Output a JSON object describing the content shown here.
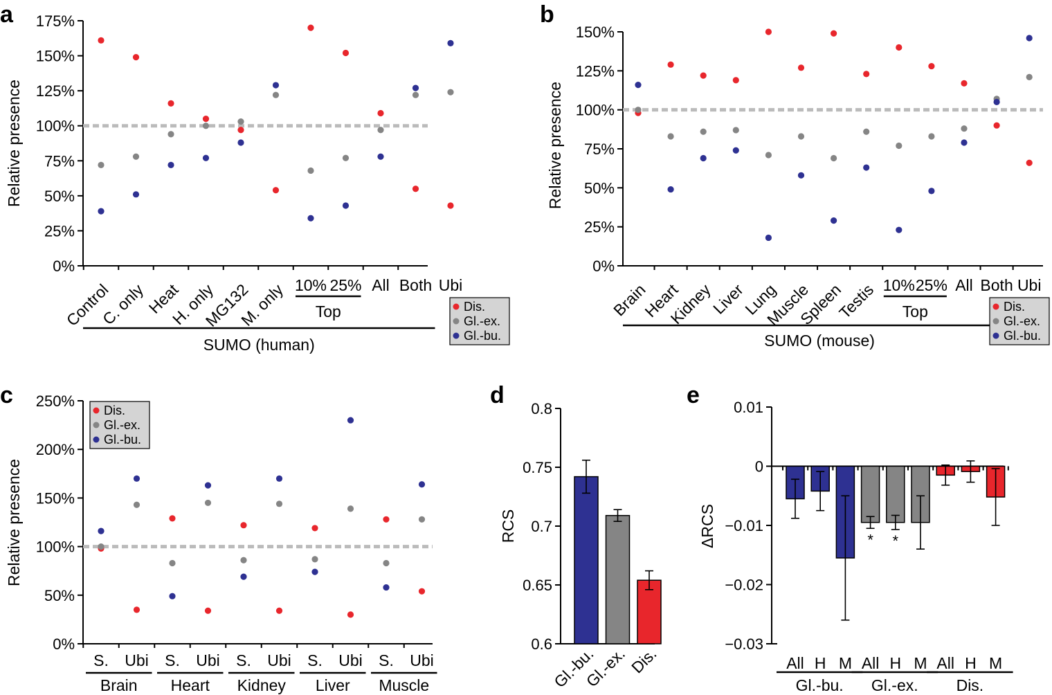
{
  "colors": {
    "dis": "#e8262c",
    "glex": "#858585",
    "glbu": "#2e3192",
    "ref": "#bbbbbb",
    "legend_bg": "#d4d4d4"
  },
  "legend": [
    "Dis.",
    "Gl.-ex.",
    "Gl.-bu."
  ],
  "chart_data": [
    {
      "id": "a",
      "panel_label": "a",
      "type": "scatter",
      "title": "",
      "ylabel": "Relative presence",
      "ylim": [
        0,
        175
      ],
      "yticks": [
        0,
        25,
        50,
        75,
        100,
        125,
        150,
        175
      ],
      "ytick_labels": [
        "0%",
        "25%",
        "50%",
        "75%",
        "100%",
        "125%",
        "150%",
        "175%"
      ],
      "reference_line": 100,
      "categories": [
        "Control",
        "C. only",
        "Heat",
        "H. only",
        "MG132",
        "M. only",
        "10%",
        "25%",
        "All",
        "Both",
        "Ubi"
      ],
      "rotated_count": 6,
      "groups": [
        {
          "label": "Top",
          "from": 6,
          "to": 7
        },
        {
          "label": "SUMO (human)",
          "from": 0,
          "to": 9
        }
      ],
      "series": [
        {
          "name": "Dis.",
          "key": "dis",
          "values": [
            161,
            149,
            116,
            105,
            97,
            54,
            170,
            152,
            109,
            55,
            43
          ]
        },
        {
          "name": "Gl.-ex.",
          "key": "glex",
          "values": [
            72,
            78,
            94,
            100,
            103,
            122,
            68,
            77,
            97,
            122,
            124
          ]
        },
        {
          "name": "Gl.-bu.",
          "key": "glbu",
          "values": [
            39,
            51,
            72,
            77,
            88,
            129,
            34,
            43,
            78,
            127,
            159
          ]
        }
      ],
      "legend_position": "bottom-right"
    },
    {
      "id": "b",
      "panel_label": "b",
      "type": "scatter",
      "title": "",
      "ylabel": "Relative presence",
      "ylim": [
        0,
        150
      ],
      "yticks": [
        0,
        25,
        50,
        75,
        100,
        125,
        150
      ],
      "ytick_labels": [
        "0%",
        "25%",
        "50%",
        "75%",
        "100%",
        "125%",
        "150%"
      ],
      "reference_line": 100,
      "categories": [
        "Brain",
        "Heart",
        "Kidney",
        "Liver",
        "Lung",
        "Muscle",
        "Spleen",
        "Testis",
        "10%",
        "25%",
        "All",
        "Both",
        "Ubi"
      ],
      "rotated_count": 8,
      "groups": [
        {
          "label": "Top",
          "from": 8,
          "to": 9
        },
        {
          "label": "SUMO (mouse)",
          "from": 0,
          "to": 11
        }
      ],
      "series": [
        {
          "name": "Dis.",
          "key": "dis",
          "values": [
            98,
            129,
            122,
            119,
            150,
            127,
            149,
            123,
            140,
            128,
            117,
            90,
            66
          ]
        },
        {
          "name": "Gl.-ex.",
          "key": "glex",
          "values": [
            100,
            83,
            86,
            87,
            71,
            83,
            69,
            86,
            77,
            83,
            88,
            107,
            121
          ]
        },
        {
          "name": "Gl.-bu.",
          "key": "glbu",
          "values": [
            116,
            49,
            69,
            74,
            18,
            58,
            29,
            63,
            23,
            48,
            79,
            105,
            146
          ]
        }
      ],
      "legend_position": "bottom-right"
    },
    {
      "id": "c",
      "panel_label": "c",
      "type": "scatter",
      "title": "",
      "ylabel": "Relative presence",
      "ylim": [
        0,
        250
      ],
      "yticks": [
        0,
        50,
        100,
        150,
        200,
        250
      ],
      "ytick_labels": [
        "0%",
        "50%",
        "100%",
        "150%",
        "200%",
        "250%"
      ],
      "reference_line": 100,
      "categories": [
        "S.",
        "Ubi",
        "S.",
        "Ubi",
        "S.",
        "Ubi",
        "S.",
        "Ubi",
        "S.",
        "Ubi"
      ],
      "groups": [
        {
          "label": "Brain",
          "from": 0,
          "to": 1
        },
        {
          "label": "Heart",
          "from": 2,
          "to": 3
        },
        {
          "label": "Kidney",
          "from": 4,
          "to": 5
        },
        {
          "label": "Liver",
          "from": 6,
          "to": 7
        },
        {
          "label": "Muscle",
          "from": 8,
          "to": 9
        }
      ],
      "series": [
        {
          "name": "Dis.",
          "key": "dis",
          "values": [
            98,
            35,
            129,
            34,
            122,
            34,
            119,
            30,
            128,
            54
          ]
        },
        {
          "name": "Gl.-ex.",
          "key": "glex",
          "values": [
            100,
            143,
            83,
            145,
            86,
            144,
            87,
            139,
            83,
            128
          ]
        },
        {
          "name": "Gl.-bu.",
          "key": "glbu",
          "values": [
            116,
            170,
            49,
            163,
            69,
            170,
            74,
            230,
            58,
            164
          ]
        }
      ],
      "legend_position": "top-left"
    },
    {
      "id": "d",
      "panel_label": "d",
      "type": "bar",
      "title": "",
      "ylabel": "RCS",
      "ylim": [
        0.6,
        0.8
      ],
      "yticks": [
        0.6,
        0.65,
        0.7,
        0.75,
        0.8
      ],
      "ytick_labels": [
        "0.6",
        "0.65",
        "0.7",
        "0.75",
        "0.8"
      ],
      "categories": [
        "Gl.-bu.",
        "Gl.-ex.",
        "Dis."
      ],
      "values": [
        0.742,
        0.709,
        0.654
      ],
      "errors": [
        0.014,
        0.005,
        0.008
      ],
      "bar_colors": [
        "glbu",
        "glex",
        "dis"
      ]
    },
    {
      "id": "e",
      "panel_label": "e",
      "type": "bar",
      "title": "",
      "ylabel": "ΔRCS",
      "ylim": [
        -0.03,
        0.01
      ],
      "yticks": [
        -0.03,
        -0.02,
        -0.01,
        0,
        0.01
      ],
      "ytick_labels": [
        "−0.03",
        "−0.02",
        "−0.01",
        "0",
        "0.01"
      ],
      "categories": [
        "All",
        "H",
        "M",
        "All",
        "H",
        "M",
        "All",
        "H",
        "M"
      ],
      "groups": [
        {
          "label": "Gl.-bu.",
          "from": 0,
          "to": 2
        },
        {
          "label": "Gl.-ex.",
          "from": 3,
          "to": 5
        },
        {
          "label": "Dis.",
          "from": 6,
          "to": 8
        }
      ],
      "values": [
        -0.0055,
        -0.0042,
        -0.0155,
        -0.0095,
        -0.0095,
        -0.0095,
        -0.0015,
        -0.0009,
        -0.0052
      ],
      "errors": [
        0.0033,
        0.0033,
        0.0105,
        0.001,
        0.0012,
        0.0045,
        0.0017,
        0.0018,
        0.0048
      ],
      "bar_colors": [
        "glbu",
        "glbu",
        "glbu",
        "glex",
        "glex",
        "glex",
        "dis",
        "dis",
        "dis"
      ],
      "significance": [
        "",
        "",
        "",
        "*",
        "*",
        "",
        "",
        "",
        ""
      ]
    }
  ]
}
